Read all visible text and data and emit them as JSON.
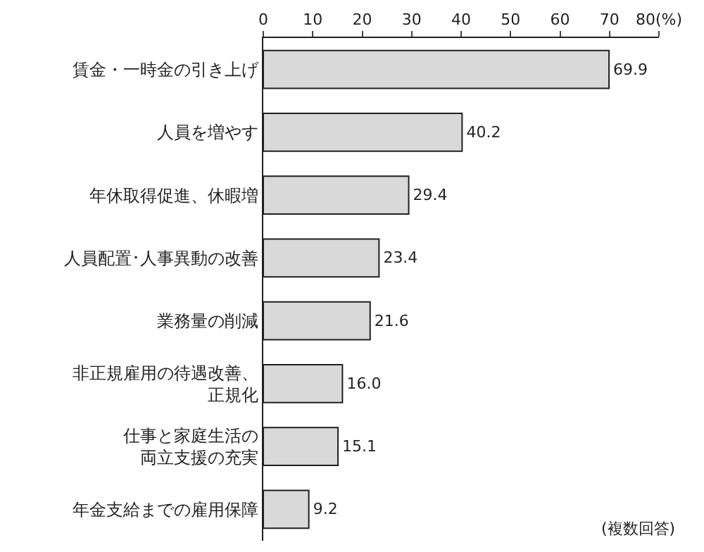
{
  "chart_data": {
    "type": "bar",
    "orientation": "horizontal",
    "categories": [
      "賃金・一時金の引き上げ",
      "人員を増やす",
      "年休取得促進、休暇増",
      "人員配置･人事異動の改善",
      "業務量の削減",
      "非正規雇用の待遇改善、正規化",
      "仕事と家庭生活の両立支援の充実",
      "年金支給までの雇用保障"
    ],
    "values": [
      69.9,
      40.2,
      29.4,
      23.4,
      21.6,
      16.0,
      15.1,
      9.2
    ],
    "value_labels": [
      "69.9",
      "40.2",
      "29.4",
      "23.4",
      "21.6",
      "16.0",
      "15.1",
      "9.2"
    ],
    "color": "#d9d9d9",
    "xlim": [
      0,
      80
    ],
    "xticks": [
      0,
      10,
      20,
      30,
      40,
      50,
      60,
      70,
      {
        "value": 80,
        "label": "80(%)"
      }
    ],
    "legend": false,
    "annotations": [
      "(複数回答)"
    ]
  }
}
